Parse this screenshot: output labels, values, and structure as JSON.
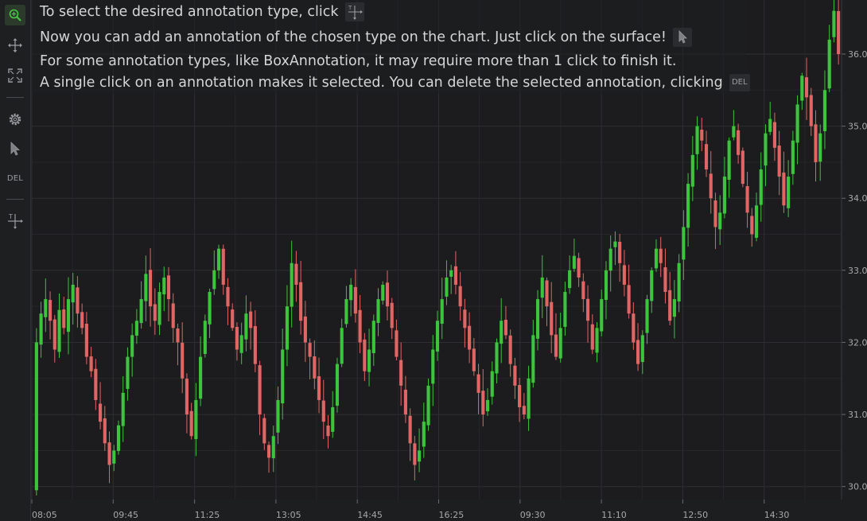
{
  "help": {
    "line1": "To select the desired annotation type, click",
    "line2": "Now you can add an annotation of the chosen type on the chart. Just click on the surface!",
    "line3": "For some annotation types, like BoxAnnotation, it may require more than 1 click to finish it.",
    "line4": "A single click on an annotation makes it selected. You can delete the selected annotation, clicking",
    "del_label": "DEL"
  },
  "toolbar": {
    "del_label": "DEL",
    "items": [
      "zoom-icon",
      "pan-icon",
      "zoom-extents-icon",
      "settings-icon",
      "cursor-icon",
      "delete-button",
      "annotation-type-icon"
    ]
  },
  "colors": {
    "background": "#1c1c1e",
    "up": "#3cc43c",
    "down": "#e06666",
    "grid": "#2e2f32",
    "axis_text": "#a8a8a8"
  },
  "chart_data": {
    "type": "candlestick",
    "x_tick_labels": [
      "08:05",
      "09:45",
      "11:25",
      "13:05",
      "14:45",
      "16:25",
      "09:30",
      "11:10",
      "12:50",
      "14:30"
    ],
    "y_ticks": [
      "30.0",
      "31.0",
      "32.0",
      "33.0",
      "34.0",
      "35.0",
      "36.0"
    ],
    "ylim": [
      29.82,
      36.75
    ],
    "y_axis_position": "right",
    "grid": true,
    "closes": [
      32.0,
      32.4,
      32.6,
      32.3,
      31.9,
      32.45,
      32.2,
      32.6,
      32.8,
      32.4,
      32.2,
      31.8,
      31.6,
      31.2,
      30.9,
      30.6,
      30.3,
      30.5,
      30.85,
      31.3,
      31.8,
      32.1,
      32.3,
      32.6,
      32.95,
      32.5,
      32.3,
      32.7,
      32.9,
      32.6,
      32.2,
      32.0,
      31.5,
      31.0,
      30.7,
      31.2,
      31.8,
      32.3,
      32.7,
      33.0,
      33.3,
      32.8,
      32.5,
      32.2,
      31.9,
      32.1,
      32.4,
      32.2,
      31.7,
      31.0,
      30.6,
      30.4,
      30.7,
      31.2,
      31.9,
      32.5,
      33.1,
      32.8,
      32.3,
      32.0,
      31.8,
      31.5,
      31.2,
      30.9,
      30.7,
      31.1,
      31.7,
      32.2,
      32.6,
      32.8,
      32.4,
      32.0,
      31.6,
      31.9,
      32.3,
      32.6,
      32.8,
      32.5,
      32.2,
      31.8,
      31.4,
      31.0,
      30.6,
      30.3,
      30.5,
      30.9,
      31.4,
      31.9,
      32.3,
      32.6,
      32.9,
      33.0,
      32.8,
      32.5,
      32.2,
      31.9,
      31.6,
      31.3,
      31.0,
      31.2,
      31.6,
      32.0,
      32.3,
      32.1,
      31.7,
      31.4,
      31.1,
      31.0,
      31.5,
      32.1,
      32.6,
      32.9,
      32.5,
      32.1,
      31.8,
      32.2,
      32.7,
      33.0,
      33.2,
      32.9,
      32.6,
      32.3,
      31.9,
      32.2,
      32.6,
      33.0,
      33.3,
      33.4,
      33.1,
      32.8,
      32.4,
      32.0,
      31.7,
      32.1,
      32.6,
      33.0,
      33.3,
      33.1,
      32.7,
      32.3,
      32.6,
      33.1,
      33.6,
      34.2,
      34.6,
      35.0,
      34.8,
      34.4,
      34.0,
      33.6,
      33.8,
      34.3,
      34.8,
      35.0,
      34.6,
      34.2,
      33.8,
      33.5,
      33.9,
      34.4,
      34.9,
      35.1,
      34.7,
      34.3,
      33.9,
      34.3,
      34.8,
      35.3,
      35.7,
      35.4,
      35.0,
      34.5,
      34.9,
      35.5,
      36.2,
      36.6,
      36.0
    ]
  }
}
